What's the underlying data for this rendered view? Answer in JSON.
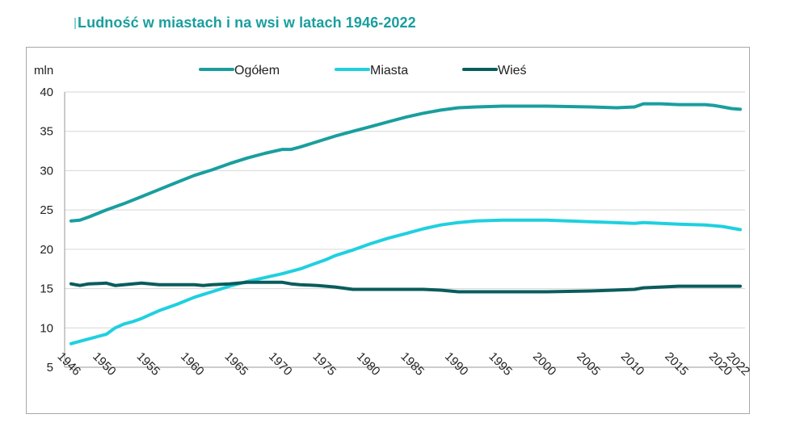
{
  "title": "Ludność w miastach i na wsi w latach 1946-2022",
  "chart_data": {
    "type": "line",
    "title": "Ludność w miastach i na wsi w latach 1946-2022",
    "ylabel": "mln",
    "xlabel": "",
    "ylim": [
      5,
      40
    ],
    "yticks": [
      5,
      10,
      15,
      20,
      25,
      30,
      35,
      40
    ],
    "xlim": [
      1946,
      2022
    ],
    "xticks": [
      1946,
      1950,
      1955,
      1960,
      1965,
      1970,
      1975,
      1980,
      1985,
      1990,
      1995,
      2000,
      2005,
      2010,
      2015,
      2020,
      2022
    ],
    "grid": "horizontal",
    "legend": "top",
    "series": [
      {
        "name": "Ogółem",
        "color": "#1a9e9e",
        "x": [
          1946,
          1947,
          1948,
          1950,
          1952,
          1954,
          1956,
          1958,
          1960,
          1962,
          1964,
          1966,
          1968,
          1970,
          1971,
          1972,
          1974,
          1976,
          1978,
          1980,
          1982,
          1984,
          1986,
          1988,
          1990,
          1992,
          1995,
          2000,
          2005,
          2008,
          2010,
          2011,
          2013,
          2015,
          2016,
          2018,
          2019,
          2020,
          2021,
          2022
        ],
        "values": [
          23.6,
          23.7,
          24.1,
          25.0,
          25.8,
          26.7,
          27.6,
          28.5,
          29.4,
          30.1,
          30.9,
          31.6,
          32.2,
          32.7,
          32.7,
          33.0,
          33.7,
          34.4,
          35.0,
          35.6,
          36.2,
          36.8,
          37.3,
          37.7,
          38.0,
          38.1,
          38.2,
          38.2,
          38.1,
          38.0,
          38.1,
          38.5,
          38.5,
          38.4,
          38.4,
          38.4,
          38.3,
          38.1,
          37.9,
          37.8
        ]
      },
      {
        "name": "Miasta",
        "color": "#1fd0e0",
        "x": [
          1946,
          1947,
          1948,
          1949,
          1950,
          1951,
          1952,
          1953,
          1954,
          1955,
          1956,
          1958,
          1960,
          1962,
          1964,
          1966,
          1968,
          1970,
          1972,
          1974,
          1975,
          1976,
          1978,
          1980,
          1982,
          1984,
          1986,
          1988,
          1990,
          1992,
          1995,
          2000,
          2005,
          2010,
          2011,
          2015,
          2018,
          2020,
          2022
        ],
        "values": [
          8.0,
          8.3,
          8.6,
          8.9,
          9.2,
          10.0,
          10.5,
          10.8,
          11.2,
          11.7,
          12.2,
          13.0,
          13.9,
          14.6,
          15.3,
          15.9,
          16.4,
          16.9,
          17.5,
          18.3,
          18.7,
          19.2,
          19.9,
          20.7,
          21.4,
          22.0,
          22.6,
          23.1,
          23.4,
          23.6,
          23.7,
          23.7,
          23.5,
          23.3,
          23.4,
          23.2,
          23.1,
          22.9,
          22.5
        ]
      },
      {
        "name": "Wieś",
        "color": "#0a5c5c",
        "x": [
          1946,
          1947,
          1948,
          1950,
          1951,
          1952,
          1954,
          1955,
          1956,
          1958,
          1960,
          1961,
          1962,
          1964,
          1966,
          1968,
          1970,
          1971,
          1972,
          1974,
          1976,
          1978,
          1980,
          1982,
          1984,
          1986,
          1988,
          1990,
          1992,
          1995,
          2000,
          2005,
          2010,
          2011,
          2015,
          2020,
          2022
        ],
        "values": [
          15.6,
          15.4,
          15.6,
          15.7,
          15.4,
          15.5,
          15.7,
          15.6,
          15.5,
          15.5,
          15.5,
          15.4,
          15.5,
          15.6,
          15.8,
          15.8,
          15.8,
          15.6,
          15.5,
          15.4,
          15.2,
          14.9,
          14.9,
          14.9,
          14.9,
          14.9,
          14.8,
          14.6,
          14.6,
          14.6,
          14.6,
          14.7,
          14.9,
          15.1,
          15.3,
          15.3,
          15.3
        ]
      }
    ]
  }
}
